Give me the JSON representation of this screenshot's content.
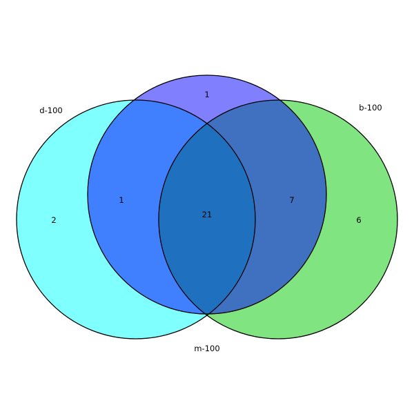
{
  "sets": {
    "d": {
      "label": "d-100",
      "color": "#80ffff"
    },
    "b": {
      "label": "b-100",
      "color": "#80e480"
    },
    "m": {
      "label": "m-100",
      "color": "#8080ff"
    }
  },
  "region_colors": {
    "d_m": "#4080ff",
    "b_m": "#4070c0",
    "d_b_m": "#2070c0"
  },
  "region_counts": {
    "d_only": "2",
    "m_only": "1",
    "b_only": "6",
    "d_m": "1",
    "b_m": "7",
    "d_b_m": "21"
  },
  "outline_color": "#000000"
}
